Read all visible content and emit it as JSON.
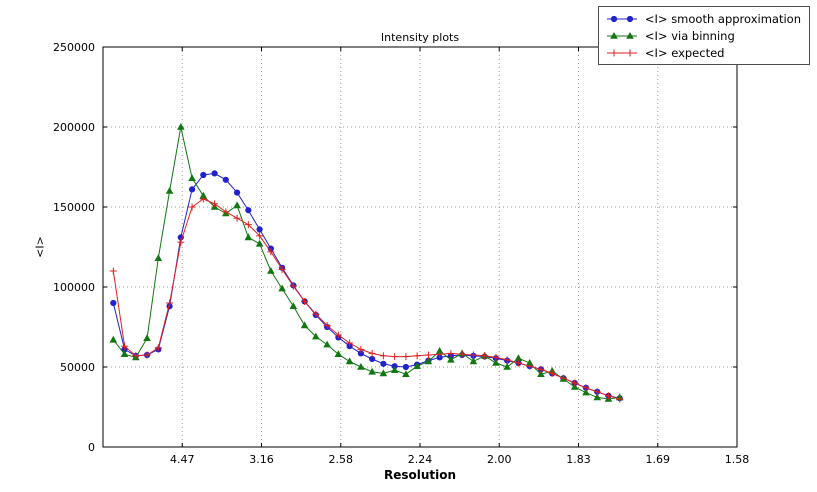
{
  "figure": {
    "title": "Intensity plots",
    "x_axis": {
      "label": "Resolution",
      "range": [
        0,
        0.4
      ],
      "ticks": [
        {
          "value": 0.05,
          "label": "4.47"
        },
        {
          "value": 0.1,
          "label": "3.16"
        },
        {
          "value": 0.15,
          "label": "2.58"
        },
        {
          "value": 0.2,
          "label": "2.24"
        },
        {
          "value": 0.25,
          "label": "2.00"
        },
        {
          "value": 0.3,
          "label": "1.83"
        },
        {
          "value": 0.35,
          "label": "1.69"
        },
        {
          "value": 0.4,
          "label": "1.58"
        }
      ]
    },
    "y_axis": {
      "label": "<I>",
      "range": [
        0,
        250000
      ],
      "ticks": [
        {
          "value": 0,
          "label": "0"
        },
        {
          "value": 50000,
          "label": "50000"
        },
        {
          "value": 100000,
          "label": "100000"
        },
        {
          "value": 150000,
          "label": "150000"
        },
        {
          "value": 200000,
          "label": "200000"
        },
        {
          "value": 250000,
          "label": "250000"
        }
      ]
    },
    "grid": {
      "visible": true,
      "style": "dotted",
      "color": "#9a9a9a"
    }
  },
  "chart_data": {
    "type": "line",
    "title": "Intensity plots",
    "xlabel": "Resolution",
    "ylabel": "<I>",
    "xlim": [
      0,
      0.4
    ],
    "ylim": [
      0,
      250000
    ],
    "legend_position": "upper right",
    "grid": true,
    "x": [
      0.0065,
      0.0136,
      0.0207,
      0.0278,
      0.0349,
      0.042,
      0.0491,
      0.0562,
      0.0633,
      0.0704,
      0.0775,
      0.0846,
      0.0917,
      0.0988,
      0.1059,
      0.113,
      0.1201,
      0.1272,
      0.1343,
      0.1414,
      0.1485,
      0.1556,
      0.1627,
      0.1698,
      0.1769,
      0.184,
      0.1911,
      0.1982,
      0.2053,
      0.2124,
      0.2195,
      0.2266,
      0.2337,
      0.2408,
      0.2479,
      0.255,
      0.2621,
      0.2692,
      0.2763,
      0.2834,
      0.2905,
      0.2976,
      0.3047,
      0.3118,
      0.3189,
      0.326
    ],
    "series": [
      {
        "name": "<I> smooth approximation",
        "color": "#2222cc",
        "marker": "circle",
        "values": [
          90000,
          61000,
          57000,
          57500,
          61000,
          88000,
          131000,
          161000,
          170000,
          171000,
          167000,
          159000,
          148000,
          136000,
          124000,
          112000,
          101000,
          91000,
          82500,
          75000,
          68500,
          63000,
          58500,
          55000,
          52000,
          50500,
          50000,
          51500,
          54000,
          56000,
          57000,
          57500,
          57000,
          56500,
          55500,
          54000,
          52500,
          50500,
          48500,
          46000,
          43000,
          40000,
          37000,
          34500,
          32000,
          30500
        ]
      },
      {
        "name": "<I> via binning",
        "color": "#117711",
        "marker": "triangle",
        "values": [
          67000,
          58000,
          56000,
          68000,
          118000,
          160000,
          200000,
          168000,
          157000,
          150000,
          146000,
          151000,
          131000,
          127000,
          110000,
          99000,
          88000,
          76000,
          69000,
          64000,
          58000,
          53500,
          50000,
          47000,
          46000,
          48000,
          45500,
          50500,
          53500,
          60000,
          54500,
          58500,
          53500,
          57000,
          52500,
          50000,
          55500,
          52500,
          45500,
          47500,
          42500,
          37500,
          34000,
          31000,
          30000,
          31000
        ]
      },
      {
        "name": "<I> expected",
        "color": "#dd2222",
        "marker": "plus",
        "values": [
          110000,
          63000,
          57000,
          57500,
          62000,
          90000,
          128000,
          150000,
          155000,
          152000,
          147000,
          143000,
          139000,
          132000,
          122000,
          111000,
          100500,
          91000,
          83000,
          76000,
          70000,
          65000,
          61000,
          58500,
          57000,
          56500,
          56500,
          57000,
          57500,
          58000,
          58500,
          58000,
          57500,
          57000,
          56000,
          54500,
          52500,
          50500,
          48500,
          46000,
          43000,
          40000,
          37000,
          34500,
          32000,
          30000
        ]
      }
    ]
  }
}
